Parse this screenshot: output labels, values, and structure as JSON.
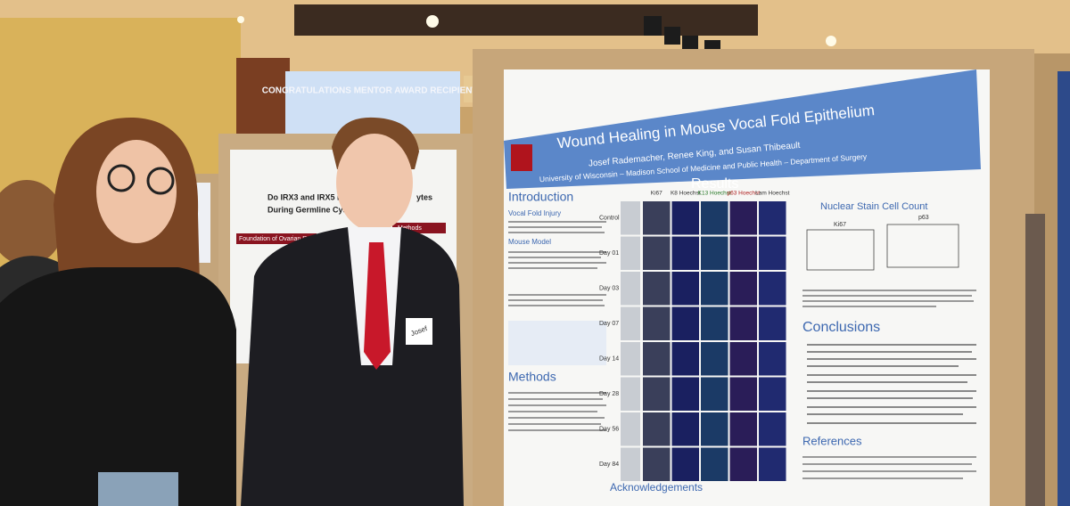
{
  "screen": {
    "text": "CONGRATULATIONS MENTOR AWARD RECIPIENTS"
  },
  "left_poster": {
    "title_line1": "Do IRX3 and IRX5 Direct Cytoplas",
    "title_line2": "During Germline Cyst Br",
    "title_end": "ytes",
    "section1": "Foundation of Ovarian Reserve",
    "section2": "Methods"
  },
  "main_poster": {
    "title": "Wound Healing in Mouse Vocal Fold Epithelium",
    "authors": "Josef Rademacher, Renee King, and Susan Thibeault",
    "affiliation": "University of Wisconsin – Madison School of Medicine and Public Health – Department of Surgery",
    "introduction": {
      "heading": "Introduction",
      "sub1": "Vocal Fold Injury",
      "sub2": "Mouse Model"
    },
    "methods": {
      "heading": "Methods"
    },
    "acknowledgements": {
      "heading": "Acknowledgements"
    },
    "results": {
      "heading": "Results",
      "columns": [
        "Ki67",
        "K8 Hoechst",
        "K13 Hoechst",
        "p63 Hoechst",
        "Lam Hoechst"
      ],
      "rows": [
        "Control",
        "Day 01",
        "Day 03",
        "Day 07",
        "Day 14",
        "Day 28",
        "Day 56",
        "Day 84"
      ]
    },
    "nuclear_stain": {
      "heading": "Nuclear Stain Cell Count",
      "chart1": "Ki67",
      "chart2": "p63"
    },
    "conclusions": {
      "heading": "Conclusions"
    },
    "references": {
      "heading": "References"
    }
  },
  "name_tag": {
    "text": "Josef"
  }
}
